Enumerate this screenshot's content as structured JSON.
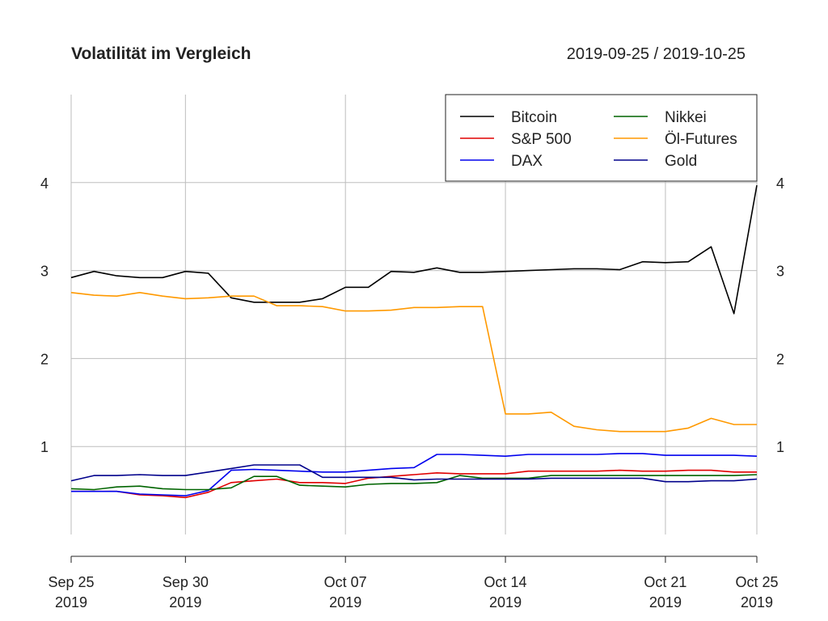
{
  "chart_data": {
    "type": "line",
    "title": "Volatilität im Vergleich",
    "date_range": "2019-09-25 / 2019-10-25",
    "x": [
      "2019-09-25",
      "2019-09-26",
      "2019-09-27",
      "2019-09-28",
      "2019-09-29",
      "2019-09-30",
      "2019-10-01",
      "2019-10-02",
      "2019-10-03",
      "2019-10-04",
      "2019-10-05",
      "2019-10-06",
      "2019-10-07",
      "2019-10-08",
      "2019-10-09",
      "2019-10-10",
      "2019-10-11",
      "2019-10-12",
      "2019-10-13",
      "2019-10-14",
      "2019-10-15",
      "2019-10-16",
      "2019-10-17",
      "2019-10-18",
      "2019-10-19",
      "2019-10-20",
      "2019-10-21",
      "2019-10-22",
      "2019-10-23",
      "2019-10-24",
      "2019-10-25"
    ],
    "x_ticks": [
      {
        "date": "2019-09-25",
        "label": [
          "Sep 25",
          "2019"
        ]
      },
      {
        "date": "2019-09-30",
        "label": [
          "Sep 30",
          "2019"
        ]
      },
      {
        "date": "2019-10-07",
        "label": [
          "Oct 07",
          "2019"
        ]
      },
      {
        "date": "2019-10-14",
        "label": [
          "Oct 14",
          "2019"
        ]
      },
      {
        "date": "2019-10-21",
        "label": [
          "Oct 21",
          "2019"
        ]
      },
      {
        "date": "2019-10-25",
        "label": [
          "Oct 25",
          "2019"
        ]
      }
    ],
    "y_ticks": [
      1,
      2,
      3,
      4
    ],
    "ylim": [
      0,
      5
    ],
    "grid": true,
    "legend_position": "top-right",
    "series": [
      {
        "name": "Bitcoin",
        "color": "#000000",
        "values": [
          2.92,
          2.99,
          2.94,
          2.92,
          2.92,
          2.99,
          2.97,
          2.69,
          2.64,
          2.64,
          2.64,
          2.68,
          2.81,
          2.81,
          2.99,
          2.98,
          3.03,
          2.98,
          2.98,
          2.99,
          3.0,
          3.01,
          3.02,
          3.02,
          3.01,
          3.1,
          3.09,
          3.1,
          3.27,
          2.51,
          3.97
        ]
      },
      {
        "name": "S&P 500",
        "color": "#e00000",
        "values": [
          0.49,
          0.49,
          0.49,
          0.45,
          0.44,
          0.42,
          0.48,
          0.59,
          0.61,
          0.63,
          0.59,
          0.59,
          0.58,
          0.64,
          0.66,
          0.68,
          0.7,
          0.69,
          0.69,
          0.69,
          0.72,
          0.72,
          0.72,
          0.72,
          0.73,
          0.72,
          0.72,
          0.73,
          0.73,
          0.71,
          0.71
        ]
      },
      {
        "name": "DAX",
        "color": "#0000ee",
        "values": [
          0.49,
          0.49,
          0.49,
          0.46,
          0.45,
          0.44,
          0.5,
          0.73,
          0.74,
          0.73,
          0.72,
          0.71,
          0.71,
          0.73,
          0.75,
          0.76,
          0.91,
          0.91,
          0.9,
          0.89,
          0.91,
          0.91,
          0.91,
          0.91,
          0.92,
          0.92,
          0.9,
          0.9,
          0.9,
          0.9,
          0.89
        ]
      },
      {
        "name": "Nikkei",
        "color": "#006400",
        "values": [
          0.52,
          0.51,
          0.54,
          0.55,
          0.52,
          0.51,
          0.51,
          0.53,
          0.66,
          0.66,
          0.56,
          0.55,
          0.54,
          0.57,
          0.58,
          0.58,
          0.59,
          0.67,
          0.64,
          0.64,
          0.64,
          0.67,
          0.67,
          0.67,
          0.67,
          0.67,
          0.67,
          0.67,
          0.67,
          0.67,
          0.68
        ]
      },
      {
        "name": "Öl-Futures",
        "color": "#ff9900",
        "values": [
          2.75,
          2.72,
          2.71,
          2.75,
          2.71,
          2.68,
          2.69,
          2.71,
          2.71,
          2.6,
          2.6,
          2.59,
          2.54,
          2.54,
          2.55,
          2.58,
          2.58,
          2.59,
          2.59,
          1.37,
          1.37,
          1.39,
          1.23,
          1.19,
          1.17,
          1.17,
          1.17,
          1.21,
          1.32,
          1.25,
          1.25
        ]
      },
      {
        "name": "Gold",
        "color": "#00008b",
        "values": [
          0.61,
          0.67,
          0.67,
          0.68,
          0.67,
          0.67,
          0.71,
          0.75,
          0.79,
          0.79,
          0.79,
          0.65,
          0.65,
          0.65,
          0.65,
          0.62,
          0.63,
          0.63,
          0.63,
          0.63,
          0.63,
          0.64,
          0.64,
          0.64,
          0.64,
          0.64,
          0.6,
          0.6,
          0.61,
          0.61,
          0.63
        ]
      }
    ]
  }
}
